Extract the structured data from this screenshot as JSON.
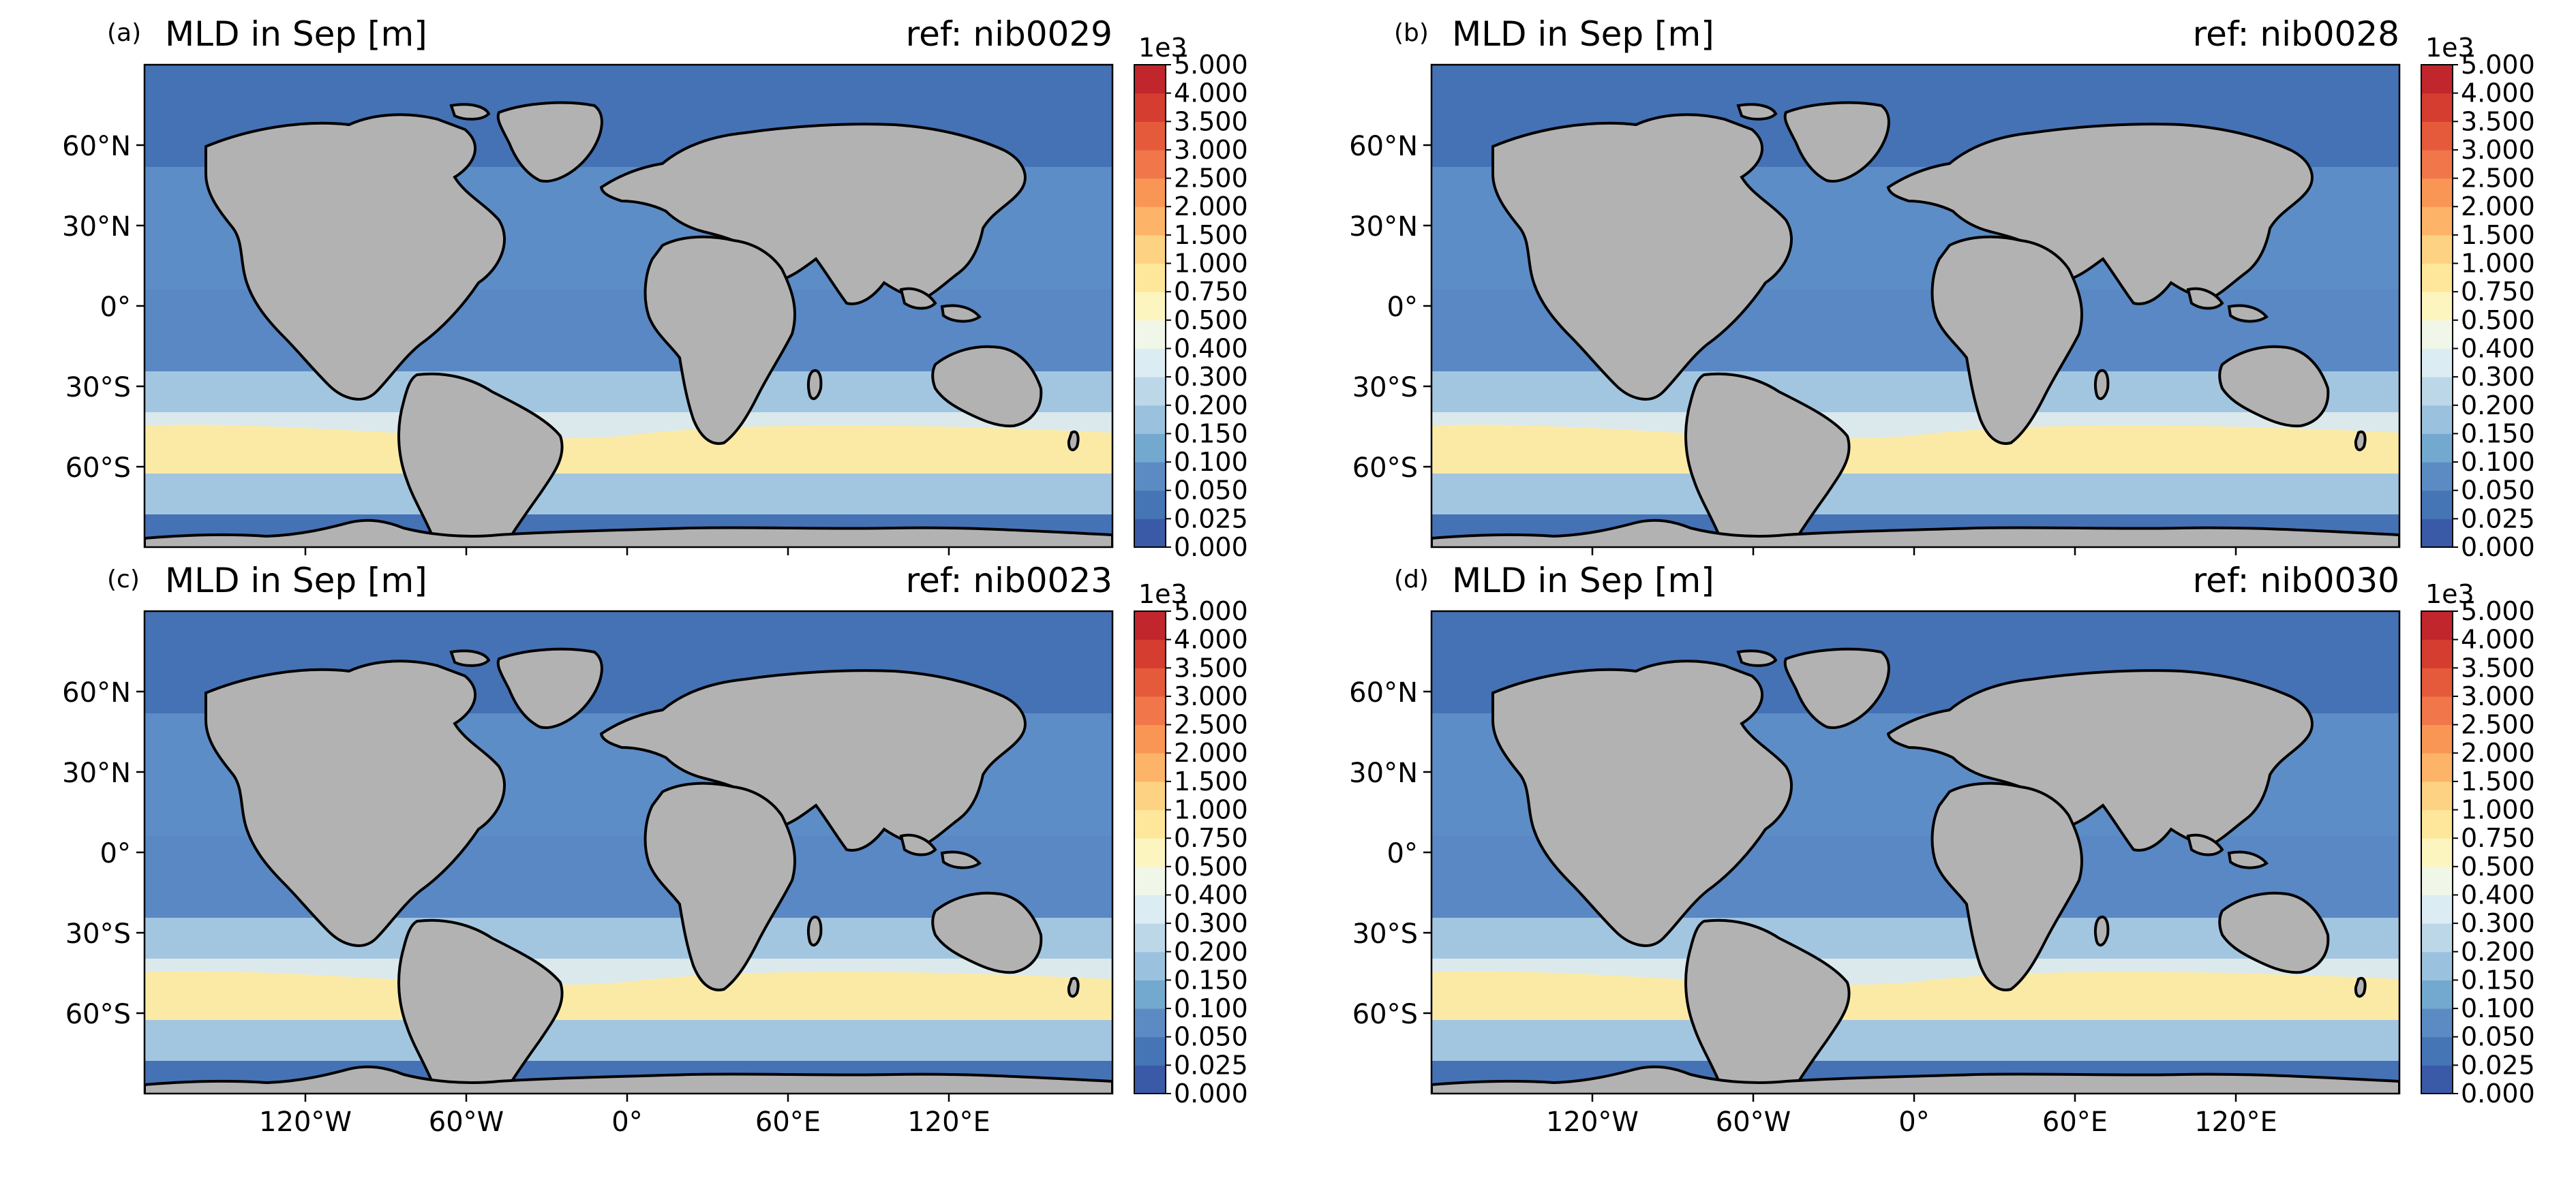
{
  "figure": {
    "panels": [
      {
        "letter": "(a)",
        "title": "MLD in Sep [m]",
        "ref": "ref: nib0029"
      },
      {
        "letter": "(b)",
        "title": "MLD in Sep [m]",
        "ref": "ref: nib0028"
      },
      {
        "letter": "(c)",
        "title": "MLD in Sep [m]",
        "ref": "ref: nib0023"
      },
      {
        "letter": "(d)",
        "title": "MLD in Sep [m]",
        "ref": "ref: nib0030"
      }
    ],
    "colorbar": {
      "exponent_label": "1e3",
      "ticks": [
        "5.000",
        "4.000",
        "3.500",
        "3.000",
        "2.500",
        "2.000",
        "1.500",
        "1.000",
        "0.750",
        "0.500",
        "0.400",
        "0.300",
        "0.200",
        "0.150",
        "0.100",
        "0.050",
        "0.025",
        "0.000"
      ],
      "colors": [
        "#3a5aa8",
        "#4575b4",
        "#5b8bc2",
        "#74a9cf",
        "#9ac1dd",
        "#bcd8e8",
        "#dcecf3",
        "#f0f7e8",
        "#fdf5c0",
        "#fee79a",
        "#fed283",
        "#fdb469",
        "#f99655",
        "#f1764a",
        "#e45a3a",
        "#d43d2f",
        "#c0262b"
      ]
    },
    "map": {
      "lat_labels": [
        "60°N",
        "30°N",
        "0°",
        "30°S",
        "60°S"
      ],
      "lon_labels": [
        "120°W",
        "60°W",
        "0°",
        "60°E",
        "120°E"
      ],
      "land_color": "#b2b2b2",
      "ocean_colors": {
        "deep_blue": "#4472b5",
        "mid_blue": "#6b9bcf",
        "light_blue": "#a3c6e0",
        "pale": "#dbe9ec",
        "yellow": "#fbeaa6",
        "orange": "#f59a59",
        "red": "#e25736"
      }
    }
  }
}
